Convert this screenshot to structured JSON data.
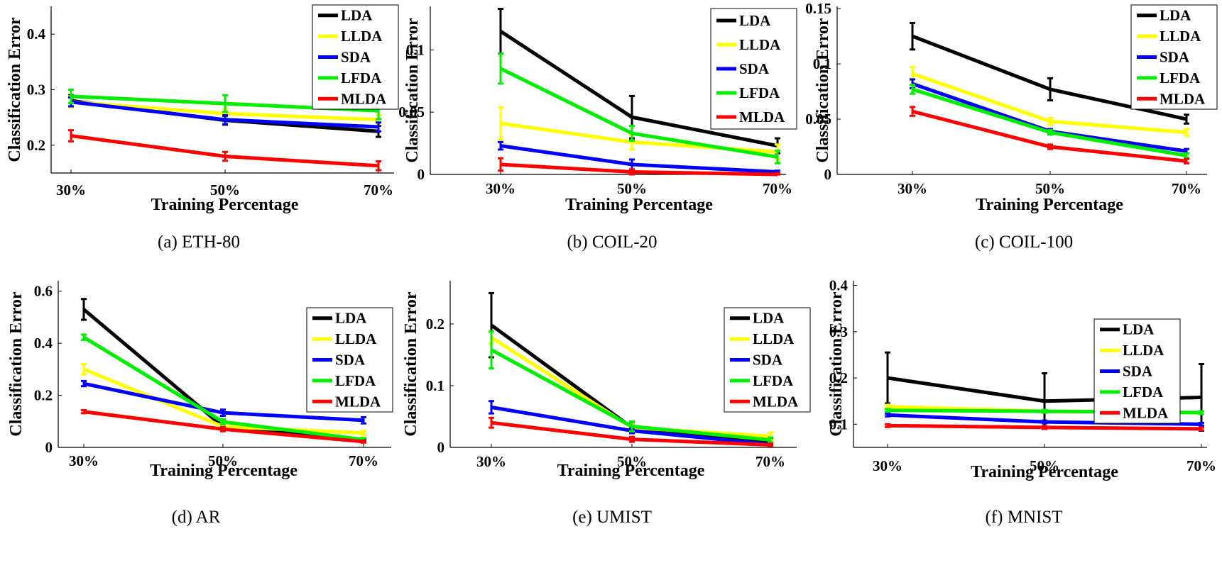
{
  "figure": {
    "series_colors": {
      "LDA": "#000000",
      "LLDA": "#ffff00",
      "SDA": "#0000ff",
      "LFDA": "#00ee00",
      "MLDA": "#ff0000"
    }
  },
  "chart_data": [
    {
      "type": "line",
      "caption": "(a) ETH-80",
      "xlabel": "Training Percentage",
      "ylabel": "Classification Error",
      "categories": [
        "30%",
        "50%",
        "70%"
      ],
      "ylim": [
        0.15,
        0.45
      ],
      "yticks": [
        0.2,
        0.3,
        0.4
      ],
      "ytick_labels": [
        "0.2",
        "0.3",
        "0.4"
      ],
      "series": [
        {
          "name": "LDA",
          "values": [
            0.28,
            0.245,
            0.225
          ],
          "errors": [
            0.01,
            0.008,
            0.01
          ]
        },
        {
          "name": "LLDA",
          "values": [
            0.278,
            0.257,
            0.246
          ],
          "errors": [
            0.01,
            0.008,
            0.008
          ]
        },
        {
          "name": "SDA",
          "values": [
            0.278,
            0.246,
            0.233
          ],
          "errors": [
            0.008,
            0.008,
            0.008
          ]
        },
        {
          "name": "LFDA",
          "values": [
            0.288,
            0.275,
            0.262
          ],
          "errors": [
            0.012,
            0.015,
            0.015
          ]
        },
        {
          "name": "MLDA",
          "values": [
            0.217,
            0.18,
            0.163
          ],
          "errors": [
            0.01,
            0.008,
            0.008
          ]
        }
      ]
    },
    {
      "type": "line",
      "caption": "(b) COIL-20",
      "xlabel": "Training Percentage",
      "ylabel": "Classification Error",
      "categories": [
        "30%",
        "50%",
        "70%"
      ],
      "ylim": [
        0,
        0.135
      ],
      "yticks": [
        0,
        0.05,
        0.1
      ],
      "ytick_labels": [
        "0",
        "0.05",
        "0.1"
      ],
      "series": [
        {
          "name": "LDA",
          "values": [
            0.115,
            0.046,
            0.023
          ],
          "errors": [
            0.018,
            0.017,
            0.006
          ]
        },
        {
          "name": "LLDA",
          "values": [
            0.041,
            0.026,
            0.018
          ],
          "errors": [
            0.013,
            0.006,
            0.006
          ]
        },
        {
          "name": "SDA",
          "values": [
            0.023,
            0.008,
            0.002
          ],
          "errors": [
            0.003,
            0.004,
            0.001
          ]
        },
        {
          "name": "LFDA",
          "values": [
            0.085,
            0.033,
            0.014
          ],
          "errors": [
            0.012,
            0.006,
            0.005
          ]
        },
        {
          "name": "MLDA",
          "values": [
            0.008,
            0.002,
            0.0
          ],
          "errors": [
            0.005,
            0.002,
            0.001
          ]
        }
      ]
    },
    {
      "type": "line",
      "caption": "(c) COIL-100",
      "xlabel": "Training Percentage",
      "ylabel": "Classification Error",
      "categories": [
        "30%",
        "50%",
        "70%"
      ],
      "ylim": [
        0,
        0.152
      ],
      "yticks": [
        0,
        0.05,
        0.1,
        0.15
      ],
      "ytick_labels": [
        "0",
        "0.05",
        "0.1",
        "0.15"
      ],
      "series": [
        {
          "name": "LDA",
          "values": [
            0.125,
            0.077,
            0.05
          ],
          "errors": [
            0.012,
            0.01,
            0.004
          ]
        },
        {
          "name": "LLDA",
          "values": [
            0.091,
            0.048,
            0.038
          ],
          "errors": [
            0.006,
            0.003,
            0.003
          ]
        },
        {
          "name": "SDA",
          "values": [
            0.082,
            0.039,
            0.021
          ],
          "errors": [
            0.004,
            0.002,
            0.002
          ]
        },
        {
          "name": "LFDA",
          "values": [
            0.077,
            0.038,
            0.017
          ],
          "errors": [
            0.004,
            0.002,
            0.002
          ]
        },
        {
          "name": "MLDA",
          "values": [
            0.057,
            0.025,
            0.012
          ],
          "errors": [
            0.004,
            0.002,
            0.002
          ]
        }
      ]
    },
    {
      "type": "line",
      "caption": "(d) AR",
      "xlabel": "Training Percentage",
      "ylabel": "Classification Error",
      "categories": [
        "30%",
        "50%",
        "70%"
      ],
      "ylim": [
        0,
        0.64
      ],
      "yticks": [
        0,
        0.2,
        0.4,
        0.6
      ],
      "ytick_labels": [
        "0",
        "0.2",
        "0.4",
        "0.6"
      ],
      "series": [
        {
          "name": "LDA",
          "values": [
            0.53,
            0.08,
            0.025
          ],
          "errors": [
            0.04,
            0.01,
            0.005
          ]
        },
        {
          "name": "LLDA",
          "values": [
            0.3,
            0.08,
            0.055
          ],
          "errors": [
            0.02,
            0.01,
            0.008
          ]
        },
        {
          "name": "SDA",
          "values": [
            0.245,
            0.133,
            0.104
          ],
          "errors": [
            0.01,
            0.012,
            0.012
          ]
        },
        {
          "name": "LFDA",
          "values": [
            0.423,
            0.098,
            0.03
          ],
          "errors": [
            0.01,
            0.01,
            0.006
          ]
        },
        {
          "name": "MLDA",
          "values": [
            0.137,
            0.07,
            0.022
          ],
          "errors": [
            0.006,
            0.008,
            0.004
          ]
        }
      ]
    },
    {
      "type": "line",
      "caption": "(e) UMIST",
      "xlabel": "Training Percentage",
      "ylabel": "Classification Error",
      "categories": [
        "30%",
        "50%",
        "70%"
      ],
      "ylim": [
        0,
        0.27
      ],
      "yticks": [
        0,
        0.1,
        0.2
      ],
      "ytick_labels": [
        "0",
        "0.1",
        "0.2"
      ],
      "series": [
        {
          "name": "LDA",
          "values": [
            0.198,
            0.032,
            0.01
          ],
          "errors": [
            0.052,
            0.008,
            0.004
          ]
        },
        {
          "name": "LLDA",
          "values": [
            0.178,
            0.032,
            0.018
          ],
          "errors": [
            0.01,
            0.006,
            0.006
          ]
        },
        {
          "name": "SDA",
          "values": [
            0.065,
            0.027,
            0.005
          ],
          "errors": [
            0.01,
            0.004,
            0.002
          ]
        },
        {
          "name": "LFDA",
          "values": [
            0.158,
            0.034,
            0.012
          ],
          "errors": [
            0.03,
            0.008,
            0.004
          ]
        },
        {
          "name": "MLDA",
          "values": [
            0.04,
            0.013,
            0.004
          ],
          "errors": [
            0.008,
            0.004,
            0.002
          ]
        }
      ]
    },
    {
      "type": "line",
      "caption": "(f) MNIST",
      "xlabel": "Training Percentage",
      "ylabel": "Classification Error",
      "categories": [
        "30%",
        "50%",
        "70%"
      ],
      "ylim": [
        0.05,
        0.41
      ],
      "yticks": [
        0.1,
        0.2,
        0.3,
        0.4
      ],
      "ytick_labels": [
        "0.1",
        "0.2",
        "0.3",
        "0.4"
      ],
      "series": [
        {
          "name": "LDA",
          "values": [
            0.2,
            0.15,
            0.158
          ],
          "errors": [
            0.055,
            0.06,
            0.072
          ]
        },
        {
          "name": "LLDA",
          "values": [
            0.138,
            0.128,
            0.125
          ],
          "errors": [
            0.004,
            0.003,
            0.003
          ]
        },
        {
          "name": "SDA",
          "values": [
            0.12,
            0.105,
            0.1
          ],
          "errors": [
            0.003,
            0.003,
            0.003
          ]
        },
        {
          "name": "LFDA",
          "values": [
            0.13,
            0.128,
            0.125
          ],
          "errors": [
            0.003,
            0.003,
            0.003
          ]
        },
        {
          "name": "MLDA",
          "values": [
            0.097,
            0.093,
            0.09
          ],
          "errors": [
            0.003,
            0.003,
            0.003
          ]
        }
      ]
    }
  ]
}
